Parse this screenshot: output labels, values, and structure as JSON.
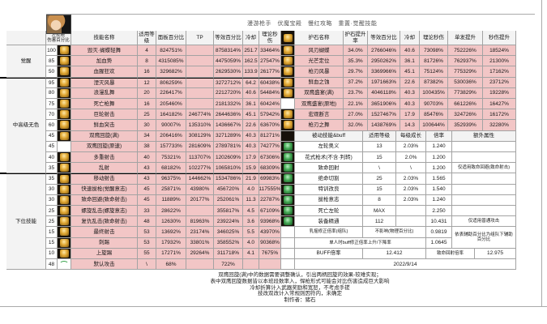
{
  "title": "漫游枪手　伏魔宝殿　慢红攻略　重置·觉醒技能",
  "date": "2022/9/14",
  "colors": {
    "row_pink": "#f2c6c6",
    "header_gray": "#f3f3f3",
    "icon_gold": "#e0a733",
    "icon_green": "#43a653",
    "border": "#a3a3a3"
  },
  "skill_table": {
    "corner": {
      "line1": "左轮枪",
      "line2": "伤害百分比"
    },
    "headers": [
      "技能名称",
      "适用等级",
      "面板百分比",
      "TP",
      "等效百分比",
      "冷却",
      "理论秒伤"
    ],
    "groups": [
      {
        "label": "觉醒",
        "span": 3
      },
      {
        "label": "中高级无色",
        "span": 9
      },
      {
        "label": "下位技能",
        "span": 9
      }
    ],
    "rows": [
      {
        "level": "100",
        "icon": "gold",
        "name": "毁灭·蝴蝶轻舞",
        "req": "4",
        "panel": "824751%",
        "tp": "",
        "eff": "8758314%",
        "cd": "251.7",
        "dps": "33464%"
      },
      {
        "level": "85",
        "icon": "gold",
        "name": "加血势",
        "req": "8",
        "panel": "4315085%",
        "tp": "",
        "eff": "4475059%",
        "cd": "162.5",
        "dps": "27547%"
      },
      {
        "level": "50",
        "icon": "gold",
        "name": "血腥狂欢",
        "req": "16",
        "panel": "329682%",
        "tp": "",
        "eff": "2629530%",
        "cd": "133.9",
        "dps": "26177%"
      },
      {
        "level": "95",
        "icon": "gold",
        "name": "湮灭风暴",
        "req": "12",
        "panel": "806259%",
        "tp": "",
        "eff": "3272712%",
        "cd": "64.2",
        "dps": "60438%"
      },
      {
        "level": "80",
        "icon": "gold",
        "name": "浪漫乱舞",
        "req": "20",
        "panel": "226417%",
        "tp": "",
        "eff": "2212720%",
        "cd": "40.6",
        "dps": "54484%"
      },
      {
        "level": "75",
        "icon": "gold",
        "name": "死亡枪舞",
        "req": "16",
        "panel": "205460%",
        "tp": "",
        "eff": "2181332%",
        "cd": "36.1",
        "dps": "60424%"
      },
      {
        "level": "70",
        "icon": "gold",
        "name": "巨轮射击",
        "req": "25",
        "panel": "164182%",
        "tp": "246774%",
        "eff": "2644636%",
        "cd": "45.1",
        "dps": "57942%"
      },
      {
        "level": "60",
        "icon": "gold",
        "name": "鲜血突击",
        "req": "30",
        "panel": "90007%",
        "tp": "135310%",
        "eff": "1436667%",
        "cd": "22.6",
        "dps": "63670%"
      },
      {
        "level": "45",
        "icon": "gold",
        "name": "双鹰回旋(满)",
        "req": "34",
        "panel": "206416%",
        "tp": "308129%",
        "eff": "3271289%",
        "cd": "40.3",
        "dps": "81271%"
      },
      {
        "level": "45",
        "icon": "none",
        "name": "双鹰回旋(原速)",
        "req": "38",
        "panel": "157733%",
        "tp": "281609%",
        "eff": "2789781%",
        "cd": "40.3",
        "dps": "74277%"
      },
      {
        "level": "40",
        "icon": "gold",
        "name": "多重射击",
        "req": "40",
        "panel": "75321%",
        "tp": "113707%",
        "eff": "1202609%",
        "cd": "17.9",
        "dps": "67306%"
      },
      {
        "level": "35",
        "icon": "gold",
        "name": "乱射",
        "req": "43",
        "panel": "68182%",
        "tp": "102277%",
        "eff": "1065810%",
        "cd": "15.9",
        "dps": "68309%"
      },
      {
        "level": "35",
        "icon": "gold",
        "name": "移动射击",
        "req": "43",
        "panel": "96375%",
        "tp": "144662%",
        "eff": "1534786%",
        "cd": "21.9",
        "dps": "69983%"
      },
      {
        "level": "30",
        "icon": "gold",
        "name": "快速拔枪(觉醒意志)",
        "req": "45",
        "panel": "25871%",
        "tp": "43980%",
        "eff": "456720%",
        "cd": "4.0",
        "dps": "117555%"
      },
      {
        "level": "30",
        "icon": "gold",
        "name": "致命回避(致命射击)",
        "req": "45",
        "panel": "11889%",
        "tp": "20177%",
        "eff": "252061%",
        "cd": "11.3",
        "dps": "22787%"
      },
      {
        "level": "25",
        "icon": "gold",
        "name": "螺旋乱击(螺旋意志)",
        "req": "33",
        "panel": "28622%",
        "tp": "",
        "eff": "355817%",
        "cd": "4.5",
        "dps": "67109%"
      },
      {
        "level": "25",
        "icon": "gold",
        "name": "复仇乱击(致命射击)",
        "req": "48",
        "panel": "12630%",
        "tp": "81963%",
        "eff": "239224%",
        "cd": "3.6",
        "dps": "93968%"
      },
      {
        "level": "15",
        "icon": "gold",
        "name": "最终射击",
        "req": "53",
        "panel": "13692%",
        "tp": "23174%",
        "eff": "346025%",
        "cd": "5.5",
        "dps": "43970%"
      },
      {
        "level": "15",
        "icon": "gold",
        "name": "刺踢",
        "req": "53",
        "panel": "17932%",
        "tp": "33801%",
        "eff": "358552%",
        "cd": "4.0",
        "dps": "90368%"
      },
      {
        "level": "10",
        "icon": "gold",
        "name": "上旋踢",
        "req": "55",
        "panel": "17271%",
        "tp": "29264%",
        "eff": "311718%",
        "cd": "4.1",
        "dps": "7675%"
      },
      {
        "level": "48",
        "icon": "arc",
        "name": "默认攻击",
        "req": "\\",
        "panel": "68%",
        "tp": "",
        "eff": "722%",
        "cd": "",
        "dps": ""
      }
    ]
  },
  "charm_table": {
    "headers": [
      "护石名称",
      "护石提升率",
      "等效百分比",
      "冷却",
      "理论秒伤",
      "单发提升",
      "秒伤提升"
    ],
    "rows": [
      {
        "icon": "gold",
        "name": "风刃蝴蝶",
        "rate": "34.0%",
        "eff": "2766046%",
        "cd": "40.6",
        "dps": "73098%",
        "single": "752226%",
        "persec": "18524%"
      },
      {
        "icon": "gold",
        "name": "光芒定位",
        "rate": "35.3%",
        "eff": "2950262%",
        "cd": "36.1",
        "dps": "81726%",
        "single": "762937%",
        "persec": "21300%"
      },
      {
        "icon": "gold",
        "name": "枪刃风暴",
        "rate": "29.7%",
        "eff": "3369966%",
        "cd": "45.1",
        "dps": "75124%",
        "single": "775329%",
        "persec": "17162%"
      },
      {
        "icon": "gold",
        "name": "鲜血之蚀",
        "rate": "37.2%",
        "eff": "1971663%",
        "cd": "22.6",
        "dps": "87382%",
        "single": "530036%",
        "persec": "23712%"
      },
      {
        "icon": "gold",
        "name": "双鹰盛宴(满)",
        "rate": "23.7%",
        "eff": "4046118%",
        "cd": "40.3",
        "dps": "100435%",
        "single": "773829%",
        "persec": "19228%"
      },
      {
        "icon": "none",
        "name": "双鹰盛宴(原地)",
        "rate": "22.1%",
        "eff": "3651906%",
        "cd": "40.3",
        "dps": "90703%",
        "single": "661226%",
        "persec": "16427%"
      },
      {
        "icon": "gold",
        "name": "宏观断言",
        "rate": "27.0%",
        "eff": "1527467%",
        "cd": "17.9",
        "dps": "85476%",
        "single": "324726%",
        "persec": "16172%"
      },
      {
        "icon": "gold",
        "name": "枪刃之舞",
        "rate": "32.0%",
        "eff": "1438769%",
        "cd": "14.3",
        "dps": "100644%",
        "single": "352939%",
        "persec": "32280%"
      }
    ]
  },
  "passive_table": {
    "headers": [
      "被动技能&buff",
      "适用等级",
      "每级成长",
      "倍率",
      "额外属性"
    ],
    "rows": [
      {
        "name": "左轮奥义",
        "req": "13",
        "grow": "2.03%",
        "mult": "1.240",
        "extra": ""
      },
      {
        "name": "花式枪术(不含·判转)",
        "req": "15",
        "grow": "2.0%",
        "mult": "1.200",
        "extra": ""
      },
      {
        "name": "致命回射",
        "req": "\\",
        "grow": "\\",
        "mult": "1.200",
        "extra": "仅适用致命回避(致命射击)"
      },
      {
        "name": "绝命切割",
        "req": "25",
        "grow": "2.03%",
        "mult": "1.565",
        "extra": ""
      },
      {
        "name": "特训改良",
        "req": "15",
        "grow": "2.03%",
        "mult": "1.540",
        "extra": ""
      },
      {
        "name": "拔枪意志",
        "req": "8",
        "grow": "2.03%",
        "mult": "1.240",
        "extra": ""
      },
      {
        "name": "死亡左轮",
        "req": "MAX",
        "grow": "",
        "mult": "2.250",
        "extra": ""
      },
      {
        "name": "装备精通",
        "req": "112",
        "grow": "",
        "mult": "10.431",
        "extra": "仅适用普通攻击"
      }
    ],
    "special": {
      "r1": {
        "name": "乳摇修正倍率(组队)",
        "mid": "不影响(物理百分比)",
        "value": "0.9819"
      },
      "r2": {
        "name": "单人时buff修正倍率上升/下降率",
        "value": "1.0645"
      },
      "r3": {
        "name": "BUFF倍率",
        "value": "12.412",
        "name2": "致命回射倍率",
        "value2": "12.975"
      },
      "note": "依表辅助百分比为组队下辅助百分比"
    }
  },
  "footer": {
    "lines": [
      "双鹰回旋(满)中的数据需要调整确认，引出两柄回旋的效果-较难实现；",
      "表中双鹰回旋数据皆以本班段数率入，悍枪形式可能会对比伤害造成巨大影响",
      "冷却折算计入武器奖励和宽恕，不考虑手搓",
      "技改双改计入常规则因符内，未确定",
      "制作者：猪石"
    ]
  }
}
